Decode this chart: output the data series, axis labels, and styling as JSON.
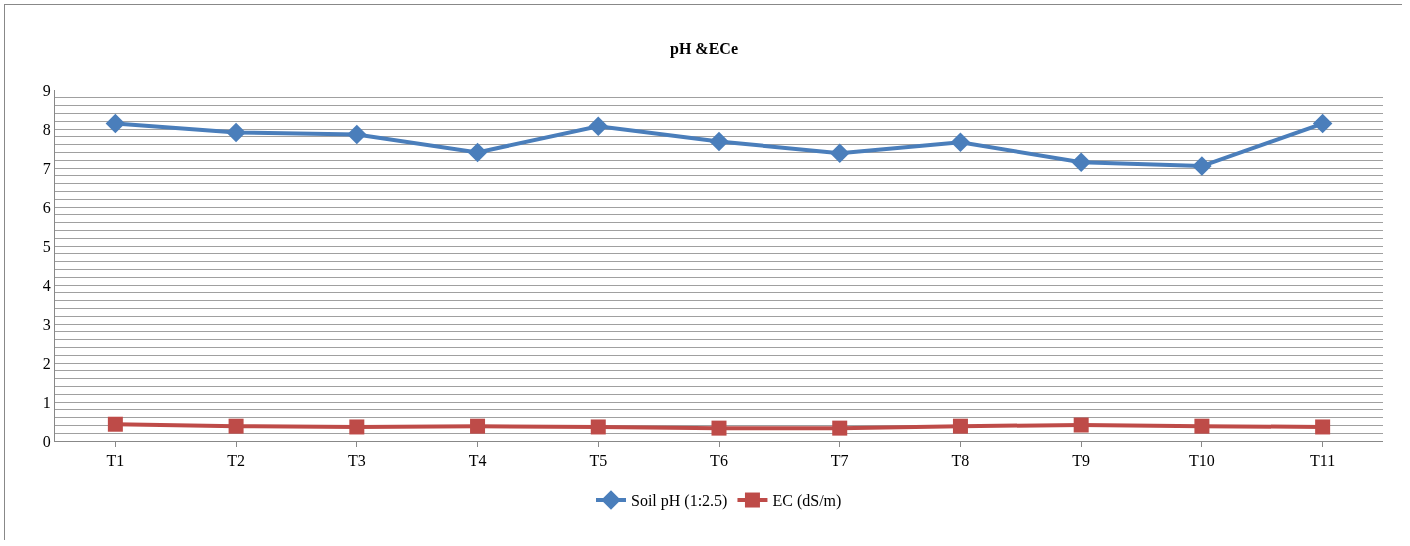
{
  "chart_data": {
    "type": "line",
    "title": "pH &ECe",
    "categories": [
      "T1",
      "T2",
      "T3",
      "T4",
      "T5",
      "T6",
      "T7",
      "T8",
      "T9",
      "T10",
      "T11"
    ],
    "series": [
      {
        "name": "Soil pH (1:2.5)",
        "color": "#4a7ebb",
        "values": [
          8.14,
          7.91,
          7.86,
          7.4,
          8.07,
          7.68,
          7.38,
          7.66,
          7.15,
          7.05,
          8.14
        ]
      },
      {
        "name": "EC (dS/m)",
        "color": "#be4b48",
        "values": [
          0.43,
          0.38,
          0.36,
          0.38,
          0.36,
          0.33,
          0.33,
          0.38,
          0.41,
          0.38,
          0.36
        ],
        "marker": "square"
      }
    ],
    "marker": "diamond",
    "line_style": "solid",
    "ylim": [
      0,
      9
    ],
    "yticks": [
      0,
      {
        "value": 0.2,
        "label": null
      },
      {
        "value": 0.4,
        "label": null
      },
      {
        "value": 0.6,
        "label": null
      },
      {
        "value": 0.8,
        "label": null
      },
      1,
      {
        "value": 1.2,
        "label": null
      },
      {
        "value": 1.4,
        "label": null
      },
      {
        "value": 1.6,
        "label": null
      },
      {
        "value": 1.8,
        "label": null
      },
      2,
      {
        "value": 2.2,
        "label": null
      },
      {
        "value": 2.4,
        "label": null
      },
      {
        "value": 2.6,
        "label": null
      },
      {
        "value": 2.8,
        "label": null
      },
      3,
      {
        "value": 3.2,
        "label": null
      },
      {
        "value": 3.4,
        "label": null
      },
      {
        "value": 3.6,
        "label": null
      },
      {
        "value": 3.8,
        "label": null
      },
      4,
      {
        "value": 4.2,
        "label": null
      },
      {
        "value": 4.4,
        "label": null
      },
      {
        "value": 4.6,
        "label": null
      },
      {
        "value": 4.8,
        "label": null
      },
      5,
      {
        "value": 5.2,
        "label": null
      },
      {
        "value": 5.4,
        "label": null
      },
      {
        "value": 5.6,
        "label": null
      },
      {
        "value": 5.8,
        "label": null
      },
      6,
      {
        "value": 6.2,
        "label": null
      },
      {
        "value": 6.4,
        "label": null
      },
      {
        "value": 6.6,
        "label": null
      },
      {
        "value": 6.8,
        "label": null
      },
      7,
      {
        "value": 7.2,
        "label": null
      },
      {
        "value": 7.4,
        "label": null
      },
      {
        "value": 7.6,
        "label": null
      },
      {
        "value": 7.8,
        "label": null
      },
      8,
      {
        "value": 8.2,
        "label": null
      },
      {
        "value": 8.4,
        "label": null
      },
      {
        "value": 8.6,
        "label": null
      },
      {
        "value": 8.8,
        "label": null
      },
      9
    ],
    "grid": "y",
    "legend": "bottom"
  }
}
